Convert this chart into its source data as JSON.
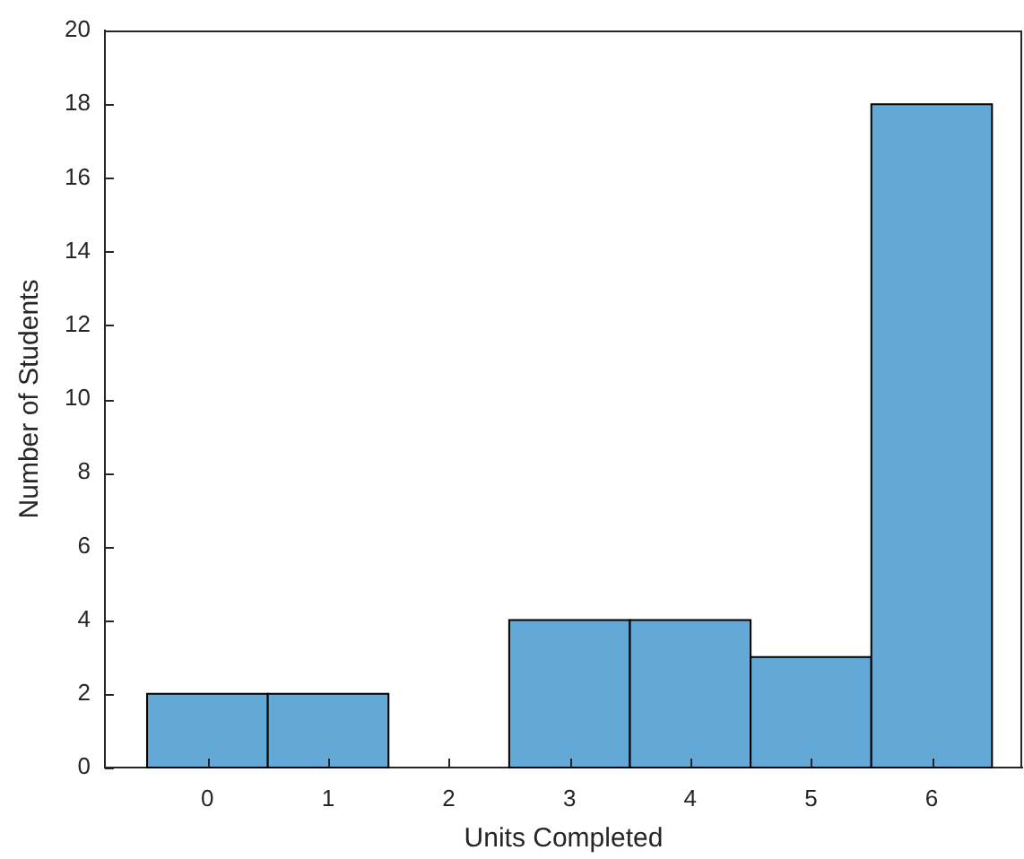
{
  "chart_data": {
    "type": "histogram",
    "xlabel": "Units Completed",
    "ylabel": "Number of Students",
    "bins": [
      -0.5,
      0.5,
      1.5,
      2.5,
      3.5,
      4.5,
      5.5,
      6.5
    ],
    "values": [
      2,
      2,
      0,
      4,
      4,
      3,
      18
    ],
    "color": "#63a9d8",
    "xlim": [
      -0.85,
      6.75
    ],
    "xticks": [
      0,
      1,
      2,
      3,
      4,
      5,
      6
    ],
    "ylim": [
      0,
      20
    ],
    "yticks": [
      0,
      2,
      4,
      6,
      8,
      10,
      12,
      14,
      16,
      18,
      20
    ],
    "grid": false,
    "legend": false
  }
}
